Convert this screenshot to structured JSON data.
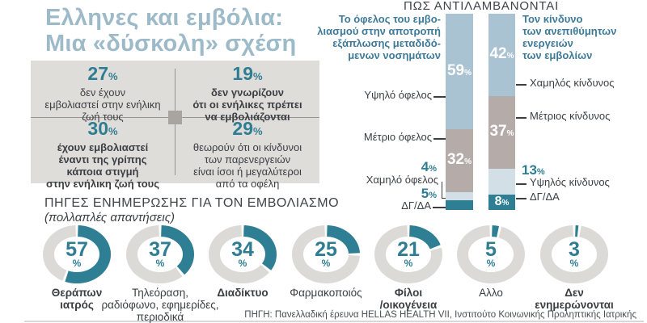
{
  "palette": {
    "teal": "#2e7f93",
    "bar_blue": "#a9c3d3",
    "bar_taupe": "#b5acaa",
    "bar_pale_blue": "#d3dfe6",
    "ring_gray": "#dcdad7",
    "box_gray": "#dfddda",
    "title_blue": "#9dbac9"
  },
  "misc": {
    "percent": "%"
  },
  "title": {
    "lines": [
      "Ελληνες και εμβόλια:",
      "Μια «δύσκολη» σχέση"
    ]
  },
  "stats_grid": {
    "cells": [
      {
        "value": 27,
        "lines": [
          "δεν έχουν",
          "εμβολιαστεί στην ενήλικη",
          "ζωή τους"
        ],
        "bold": false
      },
      {
        "value": 19,
        "lines": [
          "δεν γνωρίζουν",
          "ότι οι ενήλικες πρέπει",
          "να εμβολιάζονται"
        ],
        "bold": true
      },
      {
        "value": 30,
        "lines": [
          "έχουν εμβολιαστεί",
          "έναντι της γρίπης",
          "κάποια στιγμή",
          "στην ενήλικη ζωή τους"
        ],
        "bold": true
      },
      {
        "value": 29,
        "lines": [
          "θεωρούν ότι οι κίνδυνοι",
          "των παρενεργειών",
          "είναι ίσοι ή μεγαλύτεροι",
          "από τα οφέλη"
        ],
        "bold": false
      }
    ]
  },
  "perception": {
    "heading": "ΠΩΣ ΑΝΤΙΛΑΜΒΑΝΟΝΤΑΙ",
    "benefit_desc_lines": [
      "Το όφελος του εμβο-",
      "λιασμού στην αποτροπή",
      "εξάπλωσης μεταδιδό-",
      "μενων νοσημάτων"
    ],
    "risk_desc_lines": [
      "Τον κίνδυνο",
      "των ανεπιθύμητων",
      "ενεργειών",
      "των εμβολίων"
    ]
  },
  "sources_section": {
    "heading": "ΠΗΓΕΣ ΕΝΗΜΕΡΩΣΗΣ ΓΙΑ ΤΟΝ ΕΜΒΟΛΙΑΣΜΟ",
    "subtitle": "(πολλαπλές απαντήσεις)"
  },
  "source_note": "ΠΗΓΗ: Πανελλαδική έρευνα HELLAS HEALTH VII, Ινστιτούτο Κοινωνικής Προληπτικής Ιατρικής",
  "chart_data": [
    {
      "type": "bar",
      "variant": "stacked-percentage-column",
      "title": "Το όφελος του εμβολιασμού στην αποτροπή εξάπλωσης μεταδιδόμενων νοσημάτων",
      "unit": "%",
      "ylim": [
        0,
        100
      ],
      "segments": [
        {
          "label": "Υψηλό όφελος",
          "value": 59,
          "color": "#a9c3d3",
          "label_inside": true
        },
        {
          "label": "Μέτριο όφελος",
          "value": 32,
          "color": "#b5acaa",
          "label_inside": true
        },
        {
          "label": "Χαμηλό όφελος",
          "value": 4,
          "color": "#d3dfe6",
          "label_inside": false
        },
        {
          "label": "ΔΓ/ΔΑ",
          "value": 5,
          "color": "#2e7f93",
          "label_inside": false
        }
      ]
    },
    {
      "type": "bar",
      "variant": "stacked-percentage-column",
      "title": "Τον κίνδυνο των ανεπιθύμητων ενεργειών των εμβολίων",
      "unit": "%",
      "ylim": [
        0,
        100
      ],
      "segments": [
        {
          "label": "Χαμηλός κίνδυνος",
          "value": 42,
          "color": "#a9c3d3",
          "label_inside": true
        },
        {
          "label": "Μέτριος κίνδυνος",
          "value": 37,
          "color": "#b5acaa",
          "label_inside": true
        },
        {
          "label": "Υψηλός κίνδυνος",
          "value": 13,
          "color": "#d3dfe6",
          "label_inside": false
        },
        {
          "label": "ΔΓ/ΔΑ",
          "value": 8,
          "color": "#2e7f93",
          "label_inside": true
        }
      ]
    },
    {
      "type": "pie",
      "variant": "donut-small-multiples",
      "title": "ΠΗΓΕΣ ΕΝΗΜΕΡΩΣΗΣ ΓΙΑ ΤΟΝ ΕΜΒΟΛΙΑΣΜΟ",
      "subtitle": "(πολλαπλές απαντήσεις)",
      "unit": "%",
      "items": [
        {
          "label_lines": [
            "Θεράπων",
            "ιατρός"
          ],
          "value": 57,
          "bold": true
        },
        {
          "label_lines": [
            "Τηλεόραση,",
            "ραδιόφωνο, εφημερίδες,",
            "περιοδικά"
          ],
          "value": 37,
          "bold": false
        },
        {
          "label_lines": [
            "Διαδίκτυο"
          ],
          "value": 34,
          "bold": true
        },
        {
          "label_lines": [
            "Φαρμακοποιός"
          ],
          "value": 25,
          "bold": false
        },
        {
          "label_lines": [
            "Φίλοι",
            "/οικογένεια"
          ],
          "value": 21,
          "bold": true
        },
        {
          "label_lines": [
            "Αλλο"
          ],
          "value": 5,
          "bold": false
        },
        {
          "label_lines": [
            "Δεν",
            "ενημερώνονται"
          ],
          "value": 3,
          "bold": true
        }
      ]
    }
  ]
}
